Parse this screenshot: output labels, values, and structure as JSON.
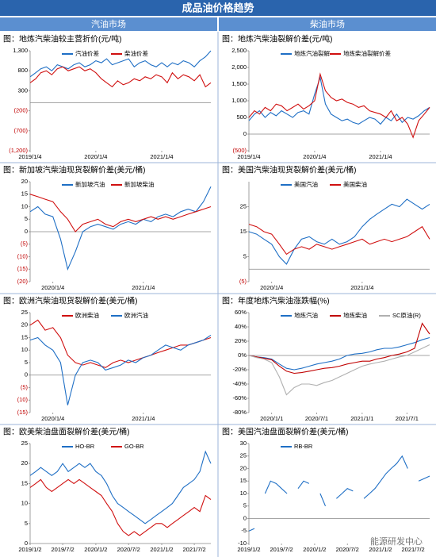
{
  "header": {
    "title": "成品油价格趋势",
    "left": "汽油市场",
    "right": "柴油市场"
  },
  "watermark": "能源研发中心",
  "chart_data": [
    {
      "type": "line",
      "title": "图：地炼汽柴油较主营折价(元/吨)",
      "x": [
        "2019/1/4",
        "2019/2/4",
        "2019/3/4",
        "2019/4/4",
        "2019/5/4",
        "2019/6/4",
        "2019/7/4",
        "2019/8/4",
        "2019/9/4",
        "2019/10/4",
        "2019/11/4",
        "2019/12/4",
        "2020/1/4",
        "2020/2/4",
        "2020/3/4",
        "2020/4/4",
        "2020/5/4",
        "2020/6/4",
        "2020/7/4",
        "2020/8/4",
        "2020/9/4",
        "2020/10/4",
        "2020/11/4",
        "2020/12/4",
        "2021/1/4",
        "2021/2/4",
        "2021/3/4",
        "2021/4/4",
        "2021/5/4",
        "2021/6/4",
        "2021/7/4",
        "2021/8/4",
        "2021/9/4",
        "2021/10/4"
      ],
      "xlim": [
        "2019/1/4",
        "2021/10/4"
      ],
      "xticks": [
        "2019/1/4",
        "2020/1/4",
        "2021/1/4"
      ],
      "ylim": [
        -1200,
        1300
      ],
      "yticks": [
        {
          "value": 1300,
          "label": "1,300"
        },
        800,
        300,
        {
          "value": -200,
          "label": "(200)"
        },
        {
          "value": -700,
          "label": "(700)"
        },
        {
          "value": -1200,
          "label": "(1,200)"
        }
      ],
      "series": [
        {
          "name": "汽油价差",
          "color": "#1f6fc5",
          "values": [
            650,
            750,
            850,
            900,
            800,
            950,
            900,
            850,
            950,
            1000,
            900,
            950,
            1050,
            1000,
            1100,
            950,
            1000,
            1050,
            1100,
            900,
            1000,
            1050,
            950,
            900,
            1000,
            900,
            1000,
            950,
            1050,
            1000,
            900,
            1050,
            1150,
            1300
          ]
        },
        {
          "name": "柴油价差",
          "color": "#d01010",
          "values": [
            500,
            600,
            750,
            800,
            700,
            850,
            900,
            800,
            850,
            900,
            800,
            850,
            750,
            600,
            500,
            400,
            550,
            450,
            500,
            600,
            550,
            650,
            600,
            700,
            650,
            500,
            750,
            600,
            700,
            650,
            550,
            700,
            400,
            500
          ]
        }
      ]
    },
    {
      "type": "line",
      "title": "图：地炼汽柴油裂解价差(元/吨)",
      "x": [
        "2019/1/4",
        "2019/2/4",
        "2019/3/4",
        "2019/4/4",
        "2019/5/4",
        "2019/6/4",
        "2019/7/4",
        "2019/8/4",
        "2019/9/4",
        "2019/10/4",
        "2019/11/4",
        "2019/12/4",
        "2020/1/4",
        "2020/2/4",
        "2020/3/4",
        "2020/4/4",
        "2020/5/4",
        "2020/6/4",
        "2020/7/4",
        "2020/8/4",
        "2020/9/4",
        "2020/10/4",
        "2020/11/4",
        "2020/12/4",
        "2021/1/4",
        "2021/2/4",
        "2021/3/4",
        "2021/4/4",
        "2021/5/4",
        "2021/6/4",
        "2021/7/4",
        "2021/8/4",
        "2021/9/4",
        "2021/10/4"
      ],
      "xlim": [
        "2019/1/4",
        "2021/10/4"
      ],
      "xticks": [
        "2019/1/4",
        "2020/1/4",
        "2021/1/4"
      ],
      "ylim": [
        -500,
        2500
      ],
      "yticks": [
        {
          "value": 2500,
          "label": "2,500"
        },
        {
          "value": 2000,
          "label": "2,000"
        },
        {
          "value": 1500,
          "label": "1,500"
        },
        {
          "value": 1000,
          "label": "1,000"
        },
        500,
        0,
        {
          "value": -500,
          "label": "(500)"
        }
      ],
      "series": [
        {
          "name": "地炼汽油裂解",
          "color": "#1f6fc5",
          "values": [
            400,
            600,
            700,
            500,
            650,
            550,
            700,
            600,
            500,
            650,
            700,
            600,
            1200,
            1700,
            900,
            600,
            500,
            400,
            450,
            350,
            300,
            400,
            500,
            450,
            300,
            500,
            400,
            600,
            350,
            500,
            450,
            550,
            700,
            800
          ]
        },
        {
          "name": "地炼柴油裂解价差",
          "color": "#d01010",
          "values": [
            500,
            700,
            600,
            800,
            700,
            900,
            850,
            700,
            800,
            900,
            750,
            850,
            1000,
            1800,
            1300,
            1100,
            1000,
            1050,
            950,
            900,
            800,
            850,
            700,
            650,
            600,
            500,
            700,
            400,
            500,
            300,
            -100,
            400,
            600,
            800
          ]
        }
      ]
    },
    {
      "type": "line",
      "title": "图：新加坡汽柴油现货裂解价差(美元/桶)",
      "x": [
        "2019/10/4",
        "2019/11/4",
        "2019/12/4",
        "2020/1/4",
        "2020/2/4",
        "2020/3/4",
        "2020/4/4",
        "2020/5/4",
        "2020/6/4",
        "2020/7/4",
        "2020/8/4",
        "2020/9/4",
        "2020/10/4",
        "2020/11/4",
        "2020/12/4",
        "2021/1/4",
        "2021/2/4",
        "2021/3/4",
        "2021/4/4",
        "2021/5/4",
        "2021/6/4",
        "2021/7/4",
        "2021/8/4",
        "2021/9/4",
        "2021/10/4"
      ],
      "xlim": [
        "2019/10/4",
        "2021/10/4"
      ],
      "xticks": [
        "2020/1/4",
        "2021/1/4"
      ],
      "ylim": [
        -20,
        20
      ],
      "yticks": [
        20,
        15,
        10,
        5,
        0,
        {
          "value": -5,
          "label": "(5)"
        },
        {
          "value": -10,
          "label": "(10)"
        },
        {
          "value": -15,
          "label": "(15)"
        },
        {
          "value": -20,
          "label": "(20)"
        }
      ],
      "series": [
        {
          "name": "新加坡汽油",
          "color": "#1f6fc5",
          "values": [
            8,
            10,
            7,
            6,
            -3,
            -15,
            -8,
            0,
            2,
            3,
            2,
            1,
            3,
            4,
            3,
            5,
            4,
            6,
            7,
            6,
            8,
            9,
            8,
            12,
            18
          ]
        },
        {
          "name": "新加坡柴油",
          "color": "#d01010",
          "values": [
            15,
            14,
            13,
            12,
            8,
            5,
            0,
            3,
            4,
            5,
            3,
            2,
            4,
            5,
            4,
            5,
            6,
            5,
            6,
            5,
            6,
            7,
            8,
            9,
            10
          ]
        }
      ]
    },
    {
      "type": "line",
      "title": "图：美国汽柴油现货裂解价差(美元/桶)",
      "x": [
        "2019/10/4",
        "2019/11/4",
        "2019/12/4",
        "2020/1/4",
        "2020/2/4",
        "2020/3/4",
        "2020/4/4",
        "2020/5/4",
        "2020/6/4",
        "2020/7/4",
        "2020/8/4",
        "2020/9/4",
        "2020/10/4",
        "2020/11/4",
        "2020/12/4",
        "2021/1/4",
        "2021/2/4",
        "2021/3/4",
        "2021/4/4",
        "2021/5/4",
        "2021/6/4",
        "2021/7/4",
        "2021/8/4",
        "2021/9/4",
        "2021/10/4"
      ],
      "xlim": [
        "2019/10/4",
        "2021/10/4"
      ],
      "xticks": [
        "2020/1/4",
        "2021/1/4"
      ],
      "ylim": [
        -5,
        35
      ],
      "yticks": [
        25,
        15,
        5,
        {
          "value": -5,
          "label": "(5)"
        }
      ],
      "series": [
        {
          "name": "美国汽油",
          "color": "#1f6fc5",
          "values": [
            15,
            14,
            12,
            10,
            5,
            2,
            8,
            12,
            13,
            11,
            10,
            12,
            10,
            11,
            13,
            17,
            20,
            22,
            24,
            26,
            25,
            28,
            26,
            24,
            26
          ]
        },
        {
          "name": "美国柴油",
          "color": "#d01010",
          "values": [
            18,
            17,
            15,
            14,
            10,
            6,
            8,
            9,
            8,
            10,
            9,
            8,
            9,
            10,
            11,
            12,
            10,
            11,
            12,
            11,
            12,
            13,
            15,
            17,
            12
          ]
        }
      ]
    },
    {
      "type": "line",
      "title": "图：欧洲汽柴油现货裂解价差(美元/桶)",
      "x": [
        "2019/10/4",
        "2019/11/4",
        "2019/12/4",
        "2020/1/4",
        "2020/2/4",
        "2020/3/4",
        "2020/4/4",
        "2020/5/4",
        "2020/6/4",
        "2020/7/4",
        "2020/8/4",
        "2020/9/4",
        "2020/10/4",
        "2020/11/4",
        "2020/12/4",
        "2021/1/4",
        "2021/2/4",
        "2021/3/4",
        "2021/4/4",
        "2021/5/4",
        "2021/6/4",
        "2021/7/4",
        "2021/8/4",
        "2021/9/4",
        "2021/10/4"
      ],
      "xlim": [
        "2019/10/4",
        "2021/10/4"
      ],
      "xticks": [
        "2020/1/4",
        "2021/1/4"
      ],
      "ylim": [
        -15,
        25
      ],
      "yticks": [
        25,
        20,
        15,
        10,
        5,
        0,
        {
          "value": -5,
          "label": "(5)"
        },
        {
          "value": -10,
          "label": "(10)"
        },
        {
          "value": -15,
          "label": "(15)"
        }
      ],
      "series": [
        {
          "name": "欧洲柴油",
          "color": "#d01010",
          "values": [
            20,
            22,
            18,
            19,
            15,
            8,
            5,
            4,
            5,
            4,
            3,
            5,
            6,
            5,
            6,
            7,
            8,
            9,
            10,
            11,
            12,
            12,
            13,
            14,
            15
          ]
        },
        {
          "name": "欧洲汽油",
          "color": "#1f6fc5",
          "values": [
            14,
            15,
            12,
            10,
            5,
            -12,
            0,
            5,
            6,
            5,
            2,
            3,
            4,
            6,
            5,
            7,
            8,
            10,
            12,
            11,
            10,
            12,
            13,
            14,
            16
          ]
        }
      ]
    },
    {
      "type": "line",
      "title": "图：年度地炼汽柴油涨跌幅(%)",
      "x": [
        "2019/10/1",
        "2019/11/1",
        "2019/12/1",
        "2020/1/1",
        "2020/2/1",
        "2020/3/1",
        "2020/4/1",
        "2020/5/1",
        "2020/6/1",
        "2020/7/1",
        "2020/8/1",
        "2020/9/1",
        "2020/10/1",
        "2020/11/1",
        "2020/12/1",
        "2021/1/1",
        "2021/2/1",
        "2021/3/1",
        "2021/4/1",
        "2021/5/1",
        "2021/6/1",
        "2021/7/1",
        "2021/8/1",
        "2021/9/1",
        "2021/10/1"
      ],
      "xlim": [
        "2019/10/1",
        "2021/10/1"
      ],
      "xticks": [
        "2020/1/1",
        "2020/7/1",
        "2021/1/1",
        "2021/7/1"
      ],
      "ylim": [
        -80,
        60
      ],
      "yticks": [
        {
          "value": 60,
          "label": "60%"
        },
        {
          "value": 40,
          "label": "40%"
        },
        {
          "value": 20,
          "label": "20%"
        },
        {
          "value": 0,
          "label": "0%"
        },
        {
          "value": -20,
          "label": "-20%"
        },
        {
          "value": -40,
          "label": "-40%"
        },
        {
          "value": -60,
          "label": "-60%"
        },
        {
          "value": -80,
          "label": "-80%"
        }
      ],
      "series": [
        {
          "name": "地炼汽油",
          "color": "#1f6fc5",
          "values": [
            0,
            -2,
            -3,
            -5,
            -12,
            -18,
            -20,
            -18,
            -15,
            -12,
            -10,
            -8,
            -5,
            0,
            2,
            3,
            5,
            8,
            10,
            10,
            12,
            15,
            18,
            22,
            25
          ]
        },
        {
          "name": "地炼柴油",
          "color": "#c00000",
          "values": [
            0,
            -2,
            -4,
            -6,
            -15,
            -22,
            -25,
            -24,
            -22,
            -20,
            -18,
            -17,
            -15,
            -12,
            -10,
            -8,
            -8,
            -5,
            -3,
            0,
            2,
            5,
            10,
            45,
            30
          ]
        },
        {
          "name": "SC原油(R)",
          "color": "#b0b0b0",
          "values": [
            0,
            -3,
            -5,
            -10,
            -30,
            -55,
            -45,
            -40,
            -40,
            -42,
            -38,
            -35,
            -30,
            -25,
            -20,
            -15,
            -12,
            -10,
            -8,
            -5,
            -2,
            0,
            5,
            10,
            15
          ]
        }
      ]
    },
    {
      "type": "line",
      "title": "图：欧美柴油盘面裂解价差(美元/桶)",
      "x": [
        "2019/1/2",
        "2019/2/2",
        "2019/3/2",
        "2019/4/2",
        "2019/5/2",
        "2019/6/2",
        "2019/7/2",
        "2019/8/2",
        "2019/9/2",
        "2019/10/2",
        "2019/11/2",
        "2019/12/2",
        "2020/1/2",
        "2020/2/2",
        "2020/3/2",
        "2020/4/2",
        "2020/5/2",
        "2020/6/2",
        "2020/7/2",
        "2020/8/2",
        "2020/9/2",
        "2020/10/2",
        "2020/11/2",
        "2020/12/2",
        "2021/1/2",
        "2021/2/2",
        "2021/3/2",
        "2021/4/2",
        "2021/5/2",
        "2021/6/2",
        "2021/7/2",
        "2021/8/2",
        "2021/9/2",
        "2021/10/2"
      ],
      "xlim": [
        "2019/1/2",
        "2021/10/2"
      ],
      "xticks": [
        "2019/1/2",
        "2019/7/2",
        "2020/1/2",
        "2020/7/2",
        "2021/1/2",
        "2021/7/2"
      ],
      "ylim": [
        0,
        25
      ],
      "yticks": [
        25,
        20,
        15,
        10,
        5,
        0
      ],
      "series": [
        {
          "name": "HO-BR",
          "color": "#1f6fc5",
          "values": [
            17,
            18,
            19,
            18,
            17,
            18,
            20,
            18,
            19,
            20,
            19,
            20,
            18,
            17,
            15,
            12,
            10,
            9,
            8,
            7,
            6,
            5,
            6,
            7,
            8,
            9,
            10,
            12,
            14,
            15,
            16,
            18,
            23,
            20
          ]
        },
        {
          "name": "GO-BR",
          "color": "#d01010",
          "values": [
            14,
            15,
            16,
            14,
            13,
            14,
            15,
            16,
            15,
            16,
            15,
            14,
            13,
            12,
            10,
            8,
            5,
            3,
            2,
            3,
            2,
            3,
            4,
            5,
            5,
            4,
            5,
            6,
            7,
            8,
            9,
            8,
            12,
            11
          ]
        }
      ]
    },
    {
      "type": "line",
      "title": "图：美国汽油盘面裂解价差(美元/桶)",
      "x": [
        "2019/1/2",
        "2019/2/2",
        "2019/3/2",
        "2019/4/2",
        "2019/5/2",
        "2019/6/2",
        "2019/7/2",
        "2019/8/2",
        "2019/9/2",
        "2019/10/2",
        "2019/11/2",
        "2019/12/2",
        "2020/1/2",
        "2020/2/2",
        "2020/3/2",
        "2020/4/2",
        "2020/5/2",
        "2020/6/2",
        "2020/7/2",
        "2020/8/2",
        "2020/9/2",
        "2020/10/2",
        "2020/11/2",
        "2020/12/2",
        "2021/1/2",
        "2021/2/2",
        "2021/3/2",
        "2021/4/2",
        "2021/5/2",
        "2021/6/2",
        "2021/7/2",
        "2021/8/2",
        "2021/9/2",
        "2021/10/2"
      ],
      "xlim": [
        "2019/1/2",
        "2021/10/2"
      ],
      "xticks": [
        "2019/1/2",
        "2019/7/2",
        "2020/1/2",
        "2020/7/2",
        "2021/1/2",
        "2021/7/2"
      ],
      "ylim": [
        -10,
        30
      ],
      "yticks": [
        30,
        25,
        20,
        15,
        10,
        5,
        0,
        -5,
        -10
      ],
      "series": [
        {
          "name": "RB-BR",
          "color": "#1f6fc5",
          "values": [
            -5,
            -4,
            null,
            10,
            15,
            14,
            12,
            10,
            null,
            12,
            15,
            14,
            null,
            10,
            5,
            null,
            8,
            10,
            12,
            11,
            null,
            8,
            10,
            12,
            15,
            18,
            20,
            22,
            25,
            20,
            null,
            15,
            16,
            17
          ]
        }
      ]
    }
  ]
}
